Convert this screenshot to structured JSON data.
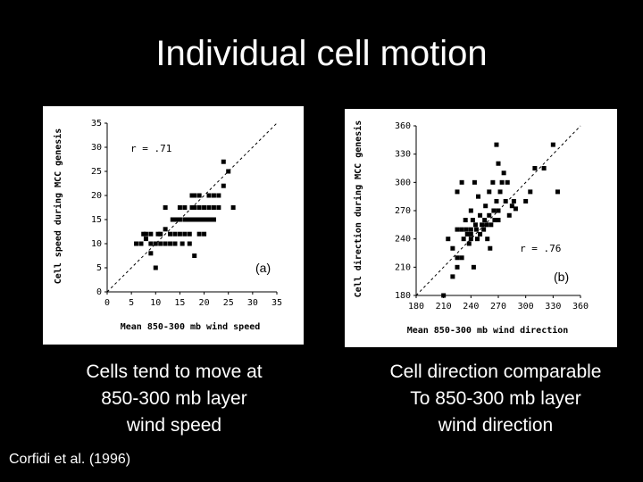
{
  "slide": {
    "title": "Individual cell motion",
    "caption_left": "Cells tend to move at\n850-300 mb layer\nwind speed",
    "caption_right": "Cell direction comparable\nTo 850-300 mb layer\nwind direction",
    "citation": "Corfidi et al. (1996)"
  },
  "colors": {
    "background": "#000000",
    "panel": "#ffffff",
    "ink": "#000000",
    "text": "#ffffff"
  },
  "chart_data": [
    {
      "type": "scatter",
      "panel_label": "(a)",
      "annotation": "r = .71",
      "xlabel": "Mean 850-300 mb wind speed",
      "ylabel": "Cell speed during MCC genesis",
      "xlim": [
        0,
        35
      ],
      "ylim": [
        0,
        35
      ],
      "xticks": [
        0,
        5,
        10,
        15,
        20,
        25,
        30,
        35
      ],
      "yticks": [
        0,
        5,
        10,
        15,
        20,
        25,
        30,
        35
      ],
      "reference_line": "y = x",
      "points": [
        [
          6,
          10
        ],
        [
          7,
          10
        ],
        [
          7.5,
          12
        ],
        [
          8,
          11
        ],
        [
          8,
          12
        ],
        [
          9,
          10
        ],
        [
          9,
          12
        ],
        [
          9,
          8
        ],
        [
          10,
          10
        ],
        [
          10,
          5
        ],
        [
          10.5,
          12
        ],
        [
          11,
          10
        ],
        [
          11,
          12
        ],
        [
          12,
          13
        ],
        [
          12,
          10
        ],
        [
          12,
          17.5
        ],
        [
          13,
          10
        ],
        [
          13,
          12
        ],
        [
          13.5,
          15
        ],
        [
          14,
          15
        ],
        [
          14,
          12
        ],
        [
          14,
          10
        ],
        [
          14.5,
          15
        ],
        [
          15,
          15
        ],
        [
          15,
          12
        ],
        [
          15,
          17.5
        ],
        [
          15.5,
          10
        ],
        [
          16,
          15
        ],
        [
          16,
          12
        ],
        [
          16,
          17.5
        ],
        [
          16.5,
          15
        ],
        [
          17,
          15
        ],
        [
          17,
          12
        ],
        [
          17,
          10
        ],
        [
          17.5,
          15
        ],
        [
          17.5,
          17.5
        ],
        [
          17.5,
          20
        ],
        [
          18,
          15
        ],
        [
          18,
          17.5
        ],
        [
          18,
          20
        ],
        [
          18,
          7.5
        ],
        [
          18.5,
          15
        ],
        [
          19,
          15
        ],
        [
          19,
          17.5
        ],
        [
          19,
          20
        ],
        [
          19,
          12
        ],
        [
          19.5,
          15
        ],
        [
          20,
          15
        ],
        [
          20,
          17.5
        ],
        [
          20,
          12
        ],
        [
          20.5,
          15
        ],
        [
          21,
          15
        ],
        [
          21,
          17.5
        ],
        [
          21,
          20
        ],
        [
          21.5,
          15
        ],
        [
          22,
          15
        ],
        [
          22,
          17.5
        ],
        [
          22,
          20
        ],
        [
          23,
          20
        ],
        [
          23,
          17.5
        ],
        [
          24,
          22
        ],
        [
          24,
          27
        ],
        [
          25,
          25
        ],
        [
          26,
          17.5
        ]
      ]
    },
    {
      "type": "scatter",
      "panel_label": "(b)",
      "annotation": "r = .76",
      "xlabel": "Mean 850-300 mb wind direction",
      "ylabel": "Cell direction during MCC genesis",
      "xlim": [
        180,
        360
      ],
      "ylim": [
        180,
        360
      ],
      "xticks": [
        180,
        210,
        240,
        270,
        300,
        330,
        360
      ],
      "yticks": [
        180,
        210,
        240,
        270,
        300,
        330,
        360
      ],
      "reference_line": "y = x",
      "points": [
        [
          210,
          180
        ],
        [
          215,
          240
        ],
        [
          220,
          200
        ],
        [
          220,
          230
        ],
        [
          225,
          210
        ],
        [
          225,
          220
        ],
        [
          225,
          250
        ],
        [
          225,
          290
        ],
        [
          230,
          300
        ],
        [
          230,
          250
        ],
        [
          230,
          220
        ],
        [
          232,
          240
        ],
        [
          234,
          260
        ],
        [
          235,
          250
        ],
        [
          236,
          245
        ],
        [
          238,
          235
        ],
        [
          240,
          270
        ],
        [
          240,
          250
        ],
        [
          240,
          245
        ],
        [
          240,
          240
        ],
        [
          242,
          260
        ],
        [
          243,
          210
        ],
        [
          244,
          300
        ],
        [
          245,
          255
        ],
        [
          246,
          250
        ],
        [
          247,
          240
        ],
        [
          248,
          285
        ],
        [
          250,
          245
        ],
        [
          250,
          265
        ],
        [
          252,
          255
        ],
        [
          254,
          250
        ],
        [
          255,
          260
        ],
        [
          256,
          275
        ],
        [
          257,
          255
        ],
        [
          258,
          240
        ],
        [
          260,
          290
        ],
        [
          260,
          265
        ],
        [
          261,
          230
        ],
        [
          262,
          255
        ],
        [
          264,
          300
        ],
        [
          265,
          270
        ],
        [
          266,
          260
        ],
        [
          268,
          280
        ],
        [
          270,
          270
        ],
        [
          270,
          260
        ],
        [
          272,
          290
        ],
        [
          274,
          300
        ],
        [
          276,
          310
        ],
        [
          278,
          280
        ],
        [
          280,
          300
        ],
        [
          282,
          265
        ],
        [
          285,
          275
        ],
        [
          287,
          280
        ],
        [
          289,
          272
        ],
        [
          300,
          280
        ],
        [
          305,
          290
        ],
        [
          310,
          315
        ],
        [
          320,
          315
        ],
        [
          330,
          340
        ],
        [
          335,
          290
        ],
        [
          268,
          340
        ],
        [
          270,
          320
        ]
      ]
    }
  ]
}
